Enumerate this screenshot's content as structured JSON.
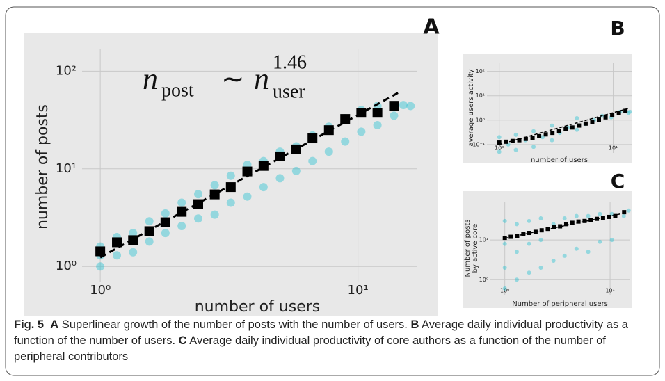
{
  "chart_data": [
    {
      "type": "scatter",
      "panel": "A",
      "xlabel": "number of users",
      "ylabel": "number of posts",
      "log": true,
      "grid": true,
      "background": "#e8e8e8",
      "xlim": [
        0.85,
        17
      ],
      "ylim": [
        0.7,
        170
      ],
      "xticks": [
        {
          "value": 1,
          "label": "10⁰"
        },
        {
          "value": 10,
          "label": "10¹"
        }
      ],
      "yticks": [
        {
          "value": 1,
          "label": "10⁰"
        },
        {
          "value": 10,
          "label": "10¹"
        },
        {
          "value": 100,
          "label": "10²"
        }
      ],
      "annotation": {
        "lhs": "n",
        "lhs_sub": "post",
        "op": "∼",
        "rhs": "n",
        "rhs_sub": "user",
        "rhs_sup": "1.46"
      },
      "series": [
        {
          "marker": "circle",
          "color": "#17becf",
          "alpha": 0.4,
          "x": [
            1,
            1,
            1,
            1.16,
            1.16,
            1.34,
            1.34,
            1.55,
            1.55,
            1.79,
            1.79,
            2.07,
            2.07,
            2.4,
            2.4,
            2.78,
            2.78,
            3.21,
            3.21,
            3.72,
            3.72,
            4.3,
            4.3,
            4.98,
            4.98,
            5.76,
            5.76,
            6.66,
            6.66,
            7.71,
            7.71,
            8.92,
            8.92,
            10.3,
            10.3,
            11.9,
            11.9,
            13.8,
            15,
            16
          ],
          "y": [
            1.0,
            1.3,
            1.6,
            1.3,
            2.0,
            1.4,
            2.2,
            1.8,
            2.9,
            2.2,
            3.5,
            2.6,
            4.5,
            3.1,
            5.5,
            3.4,
            6.8,
            4.5,
            8.5,
            5.2,
            11,
            6.5,
            12,
            8,
            15,
            9.5,
            17,
            12,
            22,
            15,
            27,
            19,
            33,
            24,
            40,
            28,
            44,
            35,
            45,
            44
          ]
        },
        {
          "marker": "square",
          "color": "#000000",
          "alpha": 1,
          "x": [
            1,
            1.16,
            1.34,
            1.55,
            1.79,
            2.07,
            2.4,
            2.78,
            3.21,
            3.72,
            4.3,
            4.98,
            5.76,
            6.66,
            7.71,
            8.92,
            10.3,
            11.9,
            13.8
          ],
          "y": [
            1.43,
            1.77,
            1.86,
            2.3,
            2.84,
            3.63,
            4.35,
            5.47,
            6.5,
            9.4,
            10.7,
            13.4,
            15.8,
            20.5,
            24.9,
            32.4,
            37.5,
            37.5,
            44.2
          ]
        },
        {
          "marker": "dashed",
          "color": "#000000",
          "alpha": 1,
          "x": [
            1,
            14.3
          ],
          "y": [
            1.24,
            60
          ]
        }
      ]
    },
    {
      "type": "scatter",
      "panel": "B",
      "xlabel": "number of users",
      "ylabel": "average users activity",
      "log": true,
      "grid": true,
      "background": "#e8e8e8",
      "xlim": [
        0.78,
        14.5
      ],
      "ylim": [
        0.045,
        230
      ],
      "xticks": [
        {
          "value": 1,
          "label": "10⁰"
        },
        {
          "value": 10,
          "label": "10¹"
        }
      ],
      "yticks": [
        {
          "value": 0.1,
          "label": "10⁻¹"
        },
        {
          "value": 1,
          "label": "10⁰"
        },
        {
          "value": 10,
          "label": "10¹"
        },
        {
          "value": 100,
          "label": "10²"
        }
      ],
      "series": [
        {
          "marker": "circle",
          "color": "#17becf",
          "alpha": 0.4,
          "x": [
            1,
            1,
            1.2,
            1.4,
            1.4,
            1.7,
            2,
            2,
            2.4,
            2.9,
            2.9,
            3.4,
            4,
            4.8,
            4.8,
            5.7,
            6.8,
            8,
            9.6,
            11.5,
            13.6,
            14
          ],
          "y": [
            0.05,
            0.2,
            0.1,
            0.06,
            0.25,
            0.15,
            0.08,
            0.35,
            0.2,
            0.15,
            0.6,
            0.3,
            0.5,
            0.4,
            1.2,
            0.7,
            1.0,
            1.5,
            1.3,
            2.2,
            2.0,
            2.2
          ]
        },
        {
          "marker": "square",
          "color": "#000000",
          "alpha": 1,
          "x": [
            1,
            1.14,
            1.31,
            1.5,
            1.71,
            1.96,
            2.24,
            2.56,
            2.93,
            3.35,
            3.83,
            4.38,
            5.01,
            5.73,
            6.55,
            7.49,
            8.57,
            9.8,
            11.2,
            12.8
          ],
          "y": [
            0.12,
            0.13,
            0.14,
            0.15,
            0.17,
            0.19,
            0.22,
            0.26,
            0.3,
            0.36,
            0.42,
            0.5,
            0.6,
            0.72,
            0.86,
            1.05,
            1.3,
            1.6,
            2.0,
            2.4
          ]
        },
        {
          "marker": "dashed",
          "color": "#000000",
          "alpha": 1,
          "x": [
            1,
            13.5
          ],
          "y": [
            0.1,
            3
          ]
        }
      ]
    },
    {
      "type": "scatter",
      "panel": "C",
      "xlabel": "Number of peripheral users",
      "ylabel": [
        "Number of posts",
        "by active core"
      ],
      "log": true,
      "grid": true,
      "background": "#e8e8e8",
      "xlim": [
        0.73,
        15.3
      ],
      "ylim": [
        0.4,
        92
      ],
      "xticks": [
        {
          "value": 1,
          "label": "10⁰"
        },
        {
          "value": 10,
          "label": "10¹"
        }
      ],
      "yticks": [
        {
          "value": 1,
          "label": "10⁰"
        },
        {
          "value": 10,
          "label": "10¹"
        }
      ],
      "series": [
        {
          "marker": "circle",
          "color": "#17becf",
          "alpha": 0.4,
          "x": [
            1,
            1,
            1,
            1,
            1.3,
            1.3,
            1.3,
            1.7,
            1.7,
            1.7,
            2.2,
            2.2,
            2.2,
            2.9,
            2.9,
            3.7,
            3.7,
            4.8,
            4.8,
            6.2,
            6.2,
            8,
            8,
            10.4,
            10.4,
            13.5,
            15
          ],
          "y": [
            0.6,
            2,
            8,
            30,
            1,
            5,
            25,
            1.5,
            8,
            30,
            2,
            10,
            35,
            3,
            25,
            4,
            35,
            6,
            40,
            5,
            40,
            9,
            45,
            10,
            45,
            40,
            55
          ]
        },
        {
          "marker": "square",
          "color": "#000000",
          "alpha": 1,
          "x": [
            1,
            1.14,
            1.31,
            1.5,
            1.71,
            1.96,
            2.24,
            2.56,
            2.93,
            3.35,
            3.83,
            4.38,
            5.01,
            5.73,
            6.55,
            7.49,
            8.57,
            9.8,
            11.2,
            13.6
          ],
          "y": [
            11.3,
            12,
            12.5,
            14,
            15,
            16,
            17.5,
            19,
            21,
            22,
            25,
            27,
            29,
            30,
            32,
            34,
            36,
            38,
            40,
            50
          ]
        },
        {
          "marker": "dashed",
          "color": "#000000",
          "alpha": 1,
          "x": [
            1,
            14
          ],
          "y": [
            11,
            48
          ]
        }
      ]
    }
  ],
  "caption": {
    "label": "Fig. 5",
    "parts": [
      {
        "letter": "A",
        "text": "Superlinear growth of the number of posts with the number of users."
      },
      {
        "letter": "B",
        "text": "Average daily individual productivity as a function of the number of users."
      },
      {
        "letter": "C",
        "text": "Average daily individual productivity of core authors as a function of the number of peripheral contributors"
      }
    ]
  }
}
